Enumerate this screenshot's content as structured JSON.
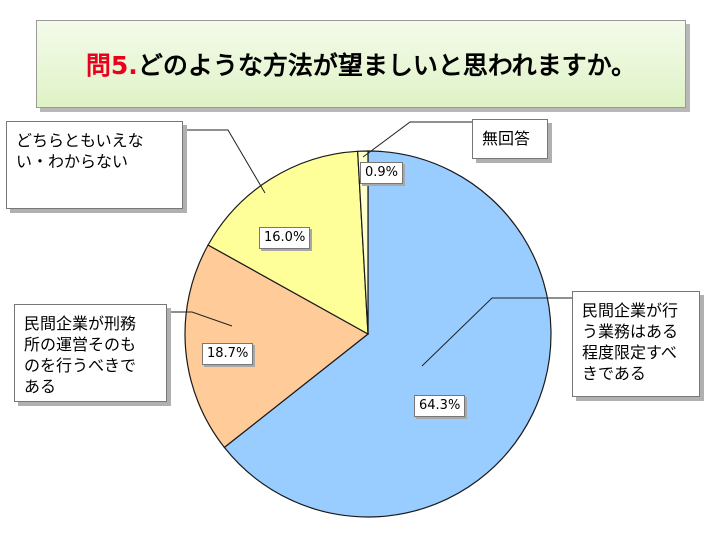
{
  "title": {
    "prefix": "問5.",
    "text": "どのような方法が望ましいと思われますか。"
  },
  "chart_data": {
    "type": "pie",
    "start_angle_deg": 0,
    "direction": "clockwise",
    "slices": [
      {
        "label": "民間企業が行う業務はある程度限定すべきである",
        "value": 64.3,
        "display": "64.3%",
        "color": "#99ccff"
      },
      {
        "label": "民間企業が刑務所の運営そのものを行うべきである",
        "value": 18.7,
        "display": "18.7%",
        "color": "#ffcc99"
      },
      {
        "label": "どちらともいえない・わからない",
        "value": 16.0,
        "display": "16.0%",
        "color": "#ffff99"
      },
      {
        "label": "無回答",
        "value": 0.9,
        "display": "0.9%",
        "color": "#ffffcc"
      }
    ]
  },
  "callouts": {
    "limited": "民間企業が行\nう業務はある\n程度限定すべ\nきである",
    "operate": "民間企業が刑務\n所の運営そのも\nのを行うべきで\nある",
    "neither": "どちらともいえな\nい・わからない",
    "noanswer": "無回答"
  }
}
